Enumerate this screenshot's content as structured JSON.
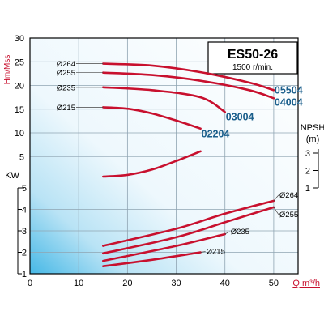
{
  "chart_data": {
    "type": "line",
    "title": "ES50-26",
    "subtitle": "1500 r/min.",
    "head_axis": {
      "label": "Hm/Mss",
      "ticks": [
        "5",
        "10",
        "15",
        "20",
        "25",
        "30"
      ],
      "ylim": [
        0,
        30
      ]
    },
    "power_axis": {
      "label": "KW",
      "ticks": [
        "1",
        "2",
        "3",
        "4",
        "5"
      ],
      "ylim": [
        1,
        5
      ]
    },
    "npsh_axis": {
      "label": "NPSH",
      "unit": "(m)",
      "ticks": [
        "1",
        "2",
        "3"
      ],
      "ylim": [
        1,
        3
      ]
    },
    "x_axis": {
      "label": "Q m³/h",
      "ticks": [
        "0",
        "10",
        "20",
        "30",
        "40",
        "50"
      ],
      "xlim": [
        0,
        55
      ]
    },
    "head_series": [
      {
        "diameter": "Ø264",
        "code": "05504",
        "points": [
          [
            15,
            24.6
          ],
          [
            25,
            24.2
          ],
          [
            35,
            22.8
          ],
          [
            45,
            20.6
          ],
          [
            50,
            19.0
          ]
        ]
      },
      {
        "diameter": "Ø255",
        "code": "04004",
        "points": [
          [
            15,
            22.7
          ],
          [
            25,
            22.2
          ],
          [
            35,
            21.0
          ],
          [
            45,
            19.0
          ],
          [
            50,
            17.3
          ]
        ]
      },
      {
        "diameter": "Ø235",
        "code": "03004",
        "points": [
          [
            15,
            19.6
          ],
          [
            25,
            19.0
          ],
          [
            35,
            17.5
          ],
          [
            40,
            14.4
          ]
        ]
      },
      {
        "diameter": "Ø215",
        "code": "02204",
        "points": [
          [
            15,
            15.4
          ],
          [
            20,
            15.1
          ],
          [
            25,
            14.1
          ],
          [
            30,
            12.6
          ],
          [
            35,
            10.9
          ]
        ]
      }
    ],
    "npsh_series": [
      {
        "points": [
          [
            15,
            1.65
          ],
          [
            20,
            1.75
          ],
          [
            25,
            2.05
          ],
          [
            30,
            2.55
          ],
          [
            35,
            3.1
          ]
        ]
      }
    ],
    "power_series": [
      {
        "diameter": "Ø264",
        "points": [
          [
            15,
            2.3
          ],
          [
            30,
            3.1
          ],
          [
            40,
            3.8
          ],
          [
            50,
            4.4
          ]
        ]
      },
      {
        "diameter": "Ø255",
        "points": [
          [
            15,
            1.95
          ],
          [
            30,
            2.7
          ],
          [
            40,
            3.4
          ],
          [
            50,
            4.1
          ]
        ]
      },
      {
        "diameter": "Ø235",
        "points": [
          [
            15,
            1.6
          ],
          [
            30,
            2.3
          ],
          [
            40,
            2.85
          ]
        ]
      },
      {
        "diameter": "Ø215",
        "points": [
          [
            15,
            1.35
          ],
          [
            25,
            1.65
          ],
          [
            35,
            2.0
          ]
        ]
      }
    ],
    "colors": {
      "curve": "#c8102e",
      "code_label": "#1b5f8c",
      "axis_label": "#c8102e",
      "grid": "#8fa4b2"
    }
  }
}
